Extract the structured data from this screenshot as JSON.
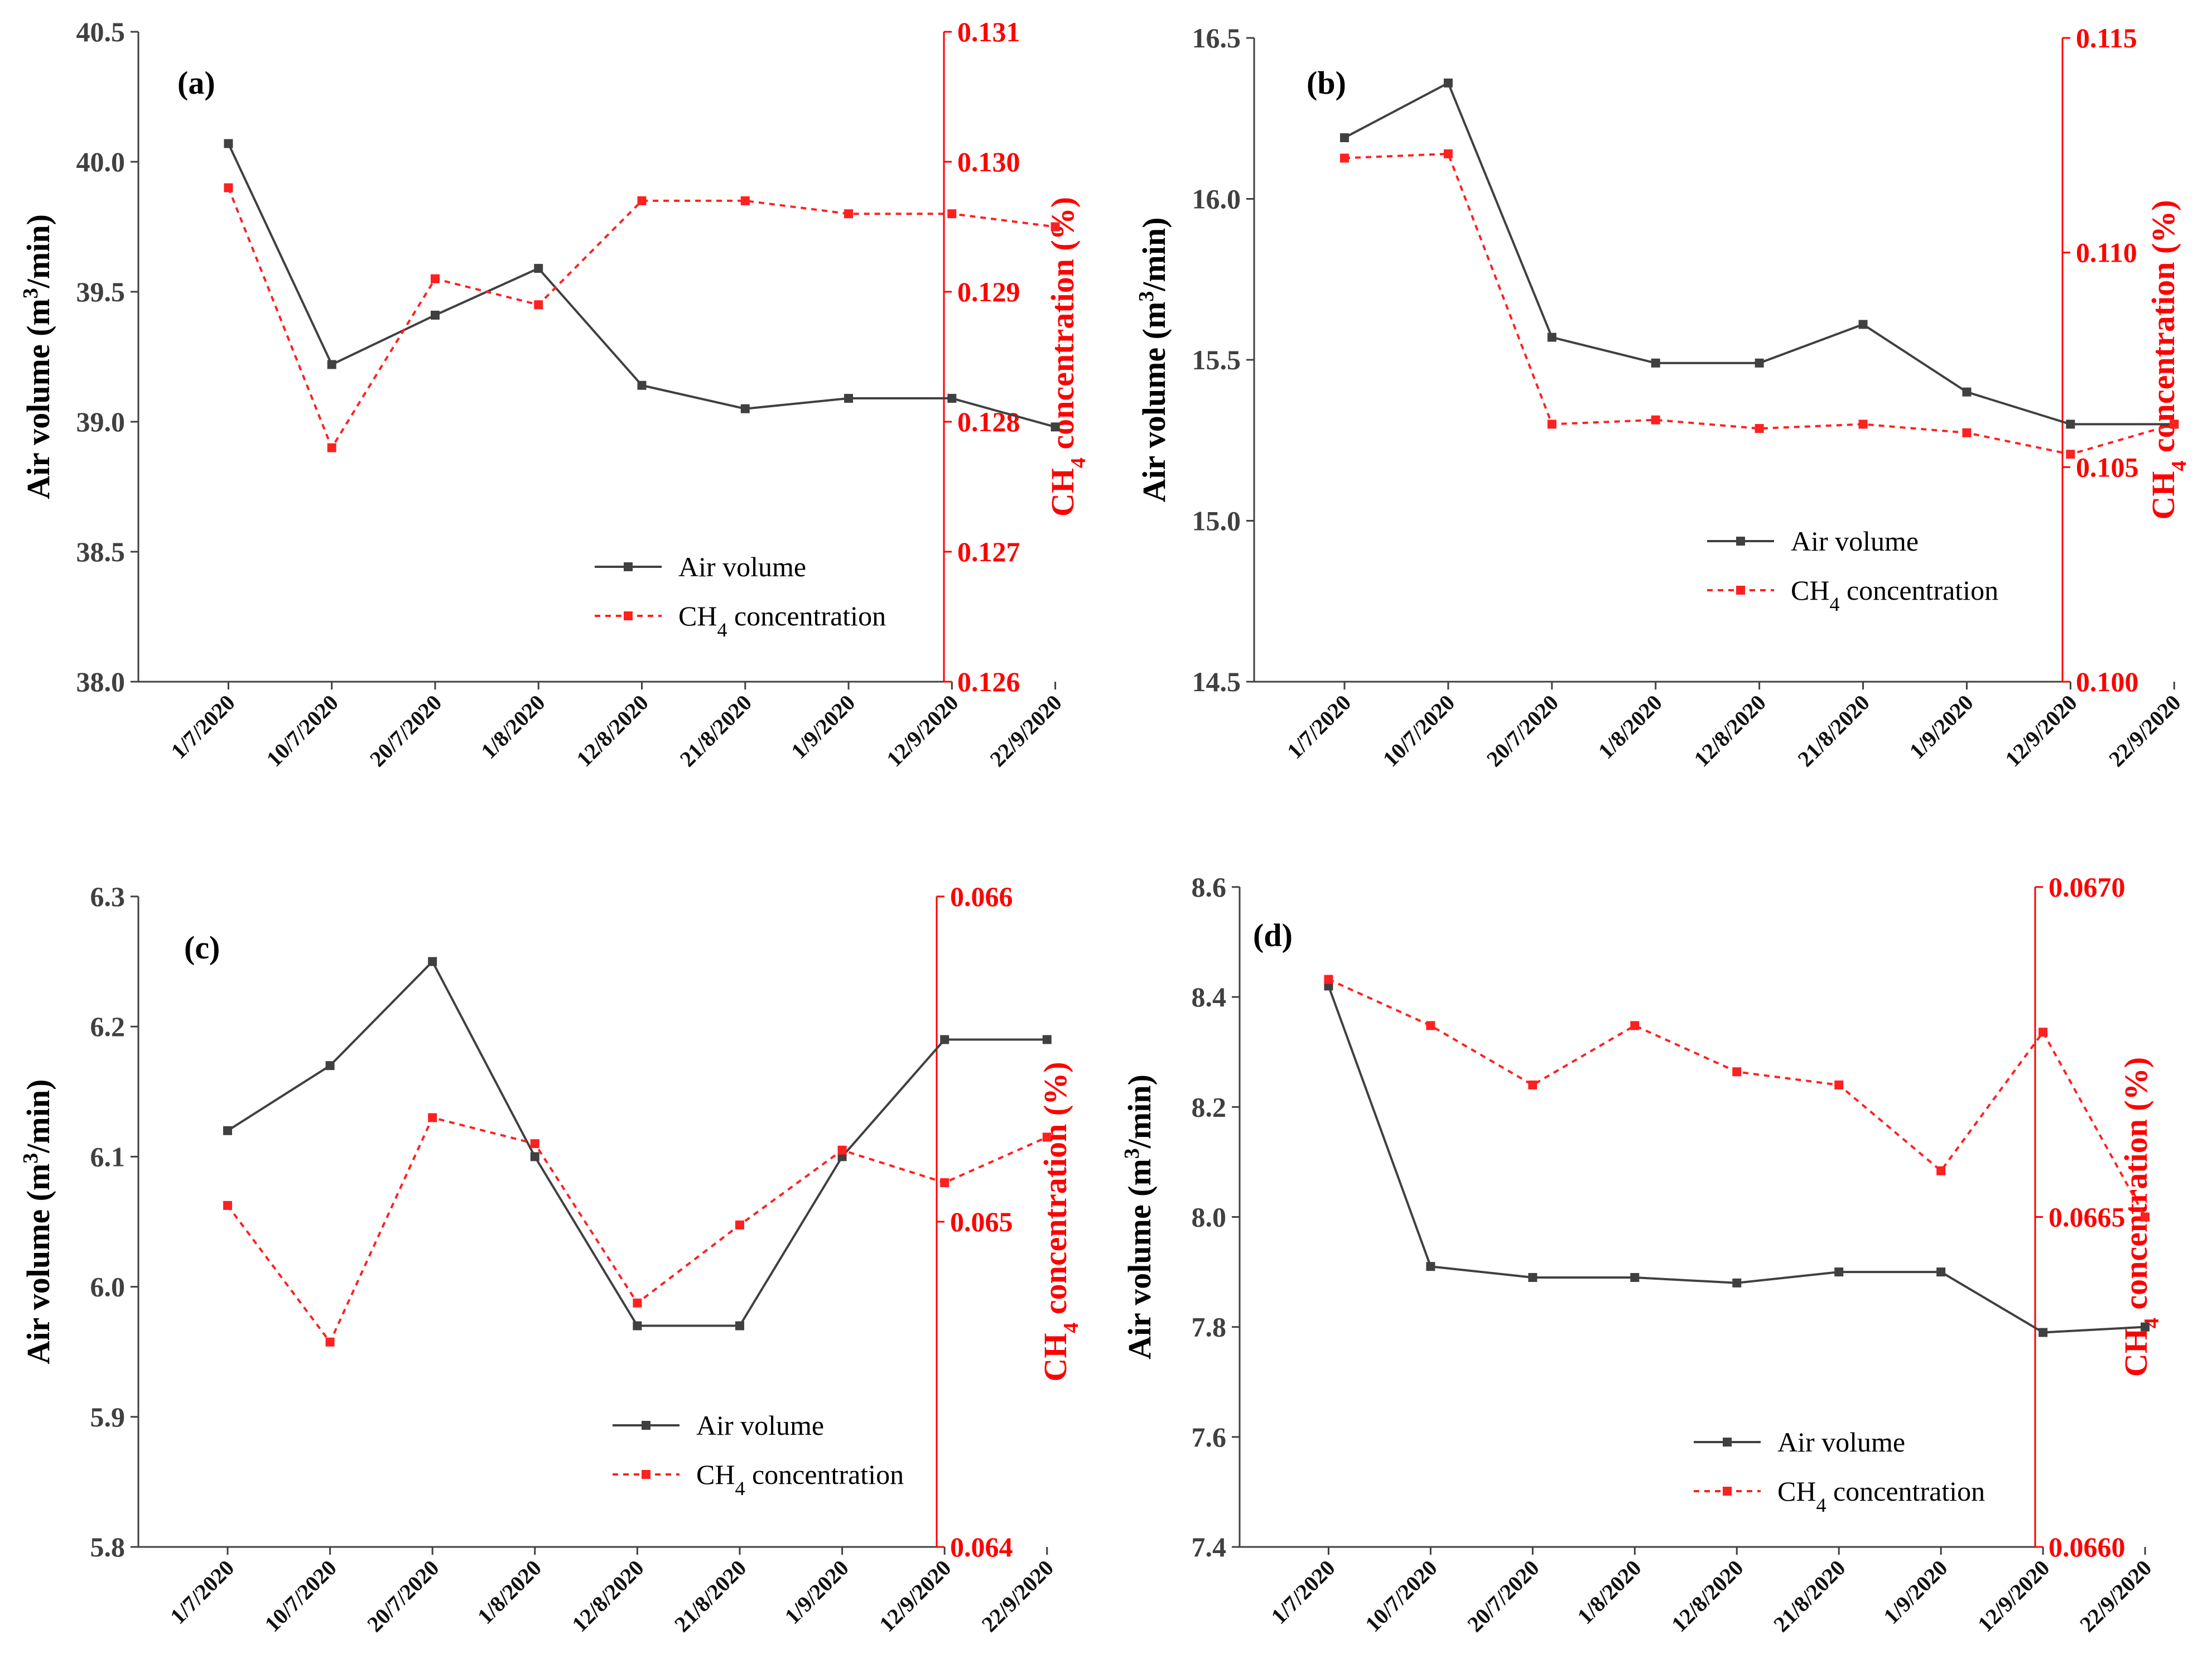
{
  "colors": {
    "air": "#404040",
    "ch4": "#ff2020",
    "axis_left": "#404040",
    "axis_right": "#ff0000"
  },
  "legend": {
    "air": "Air volume",
    "ch4_prefix": "CH",
    "ch4_sub": "4",
    "ch4_suffix": " concentration"
  },
  "axis_titles": {
    "left_prefix": "Air volume (m",
    "left_sup": "3",
    "left_suffix": "/min)",
    "right_prefix": "CH",
    "right_sub": "4",
    "right_suffix": " concentration (%)"
  },
  "chart_data": [
    {
      "type": "line",
      "panel": "(a)",
      "categories": [
        "1/7/2020",
        "10/7/2020",
        "20/7/2020",
        "1/8/2020",
        "12/8/2020",
        "21/8/2020",
        "1/9/2020",
        "12/9/2020",
        "22/9/2020"
      ],
      "series": [
        {
          "name": "Air volume",
          "axis": "left",
          "values": [
            40.07,
            39.22,
            39.41,
            39.59,
            39.14,
            39.05,
            39.09,
            39.09,
            38.98
          ]
        },
        {
          "name": "CH4 concentration",
          "axis": "right",
          "values": [
            0.1298,
            0.1278,
            0.1291,
            0.1289,
            0.1297,
            0.1297,
            0.1296,
            0.1296,
            0.1295
          ]
        }
      ],
      "ylim_left": [
        38.0,
        40.5
      ],
      "yticks_left": [
        "38.0",
        "38.5",
        "39.0",
        "39.5",
        "40.0",
        "40.5"
      ],
      "ylim_right": [
        0.126,
        0.131
      ],
      "yticks_right": [
        "0.126",
        "0.127",
        "0.128",
        "0.129",
        "0.130",
        "0.131"
      ],
      "legend_position": "bottom-right"
    },
    {
      "type": "line",
      "panel": "(b)",
      "categories": [
        "1/7/2020",
        "10/7/2020",
        "20/7/2020",
        "1/8/2020",
        "12/8/2020",
        "21/8/2020",
        "1/9/2020",
        "12/9/2020",
        "22/9/2020"
      ],
      "series": [
        {
          "name": "Air volume",
          "axis": "left",
          "values": [
            16.19,
            16.36,
            15.57,
            15.49,
            15.49,
            15.61,
            15.4,
            15.3,
            15.3
          ]
        },
        {
          "name": "CH4 concentration",
          "axis": "right",
          "values": [
            0.1122,
            0.1123,
            0.106,
            0.1061,
            0.1059,
            0.106,
            0.1058,
            0.1053,
            0.106
          ]
        }
      ],
      "ylim_left": [
        14.5,
        16.5
      ],
      "yticks_left": [
        "14.5",
        "15.0",
        "15.5",
        "16.0",
        "16.5"
      ],
      "ylim_right": [
        0.1,
        0.115
      ],
      "yticks_right": [
        "0.100",
        "0.105",
        "0.110",
        "0.115"
      ],
      "legend_position": "bottom-right"
    },
    {
      "type": "line",
      "panel": "(c)",
      "categories": [
        "1/7/2020",
        "10/7/2020",
        "20/7/2020",
        "1/8/2020",
        "12/8/2020",
        "21/8/2020",
        "1/9/2020",
        "12/9/2020",
        "22/9/2020"
      ],
      "series": [
        {
          "name": "Air volume",
          "axis": "left",
          "values": [
            6.12,
            6.17,
            6.25,
            6.1,
            5.97,
            5.97,
            6.1,
            6.19,
            6.19
          ]
        },
        {
          "name": "CH4 concentration",
          "axis": "right",
          "values": [
            0.06505,
            0.06463,
            0.06532,
            0.06524,
            0.06475,
            0.06499,
            0.06522,
            0.06512,
            0.06526
          ]
        }
      ],
      "ylim_left": [
        5.8,
        6.3
      ],
      "yticks_left": [
        "5.8",
        "5.9",
        "6.0",
        "6.1",
        "6.2",
        "6.3"
      ],
      "ylim_right": [
        0.064,
        0.066
      ],
      "yticks_right": [
        "0.064",
        "0.065",
        "0.066"
      ],
      "legend_position": "bottom-right"
    },
    {
      "type": "line",
      "panel": "(d)",
      "categories": [
        "1/7/2020",
        "10/7/2020",
        "20/7/2020",
        "1/8/2020",
        "12/8/2020",
        "21/8/2020",
        "1/9/2020",
        "12/9/2020",
        "22/9/2020"
      ],
      "series": [
        {
          "name": "Air volume",
          "axis": "left",
          "values": [
            8.42,
            7.91,
            7.89,
            7.89,
            7.88,
            7.9,
            7.9,
            7.79,
            7.8
          ]
        },
        {
          "name": "CH4 concentration",
          "axis": "right",
          "values": [
            0.06686,
            0.06679,
            0.0667,
            0.06679,
            0.06672,
            0.0667,
            0.06657,
            0.06678,
            0.0665
          ]
        }
      ],
      "ylim_left": [
        7.4,
        8.6
      ],
      "yticks_left": [
        "7.4",
        "7.6",
        "7.8",
        "8.0",
        "8.2",
        "8.4",
        "8.6"
      ],
      "ylim_right": [
        0.066,
        0.067
      ],
      "yticks_right": [
        "0.0660",
        "0.0665",
        "0.0670"
      ],
      "legend_position": "bottom-right"
    }
  ]
}
